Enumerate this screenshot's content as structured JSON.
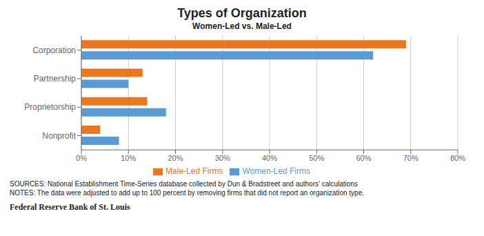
{
  "chart_data": {
    "type": "bar",
    "orientation": "horizontal",
    "title": "Types of Organization",
    "subtitle": "Women-Led vs. Male-Led",
    "categories": [
      "Corporation",
      "Partnership",
      "Proprietorship",
      "Nonprofit"
    ],
    "series": [
      {
        "name": "Male-Led Firms",
        "color": "#E87722",
        "values": [
          69,
          13,
          14,
          4
        ]
      },
      {
        "name": "Women-Led Firms",
        "color": "#5B9BD5",
        "values": [
          62,
          10,
          18,
          8
        ]
      }
    ],
    "xlim": [
      0,
      80
    ],
    "xticks": [
      {
        "value": 0,
        "label": "0%"
      },
      {
        "value": 10,
        "label": "10%"
      },
      {
        "value": 20,
        "label": "20%"
      },
      {
        "value": 30,
        "label": "30%"
      },
      {
        "value": 40,
        "label": "40%"
      },
      {
        "value": 50,
        "label": "50%"
      },
      {
        "value": 60,
        "label": "60%"
      },
      {
        "value": 70,
        "label": "70%"
      },
      {
        "value": 80,
        "label": "80%"
      }
    ],
    "grid": "x",
    "legend": "bottom",
    "annotations": [
      "SOURCES: National Establishment Time-Series database collected by Dun & Bradstreet and authors' calculations",
      "NOTES: The data were adjusted to add up to 100 percent by removing firms that did not report an organization type.",
      "Federal Reserve Bank of St. Louis"
    ]
  }
}
